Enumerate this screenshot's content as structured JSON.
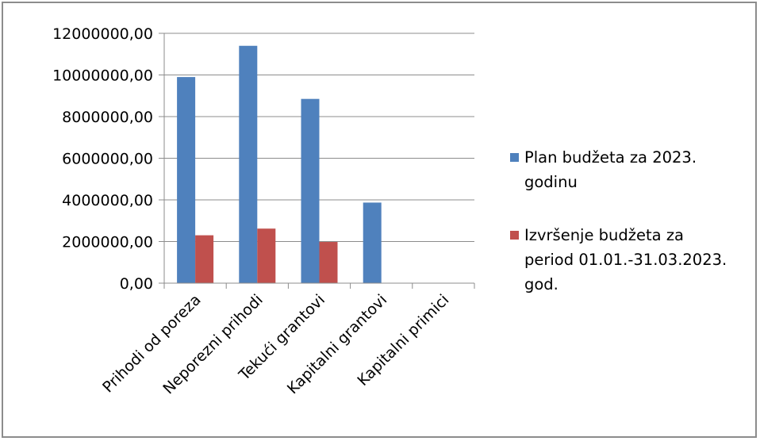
{
  "chart_data": {
    "type": "bar",
    "categories": [
      "Prihodi od poreza",
      "Neporezni prihodi",
      "Tekući grantovi",
      "Kapitalni grantovi",
      "Kapitalni primici"
    ],
    "series": [
      {
        "name": "Plan budžeta za 2023. godinu",
        "name_lines": [
          "Plan budžeta za 2023.",
          "godinu"
        ],
        "color": "#4f81bd",
        "values": [
          9900000,
          11400000,
          8850000,
          3870000,
          0
        ]
      },
      {
        "name": "Izvršenje budžeta za period 01.01.-31.03.2023. god.",
        "name_lines": [
          "Izvršenje budžeta za",
          "period 01.01.-31.03.2023.",
          "god."
        ],
        "color": "#c0504d",
        "values": [
          2300000,
          2620000,
          1980000,
          0,
          0
        ]
      }
    ],
    "ylim": [
      0,
      12000000
    ],
    "yticks": [
      0,
      2000000,
      4000000,
      6000000,
      8000000,
      10000000,
      12000000
    ],
    "ytick_labels": [
      "0,00",
      "2000000,00",
      "4000000,00",
      "6000000,00",
      "8000000,00",
      "10000000,00",
      "12000000,00"
    ],
    "grid": true,
    "legend_position": "right"
  }
}
